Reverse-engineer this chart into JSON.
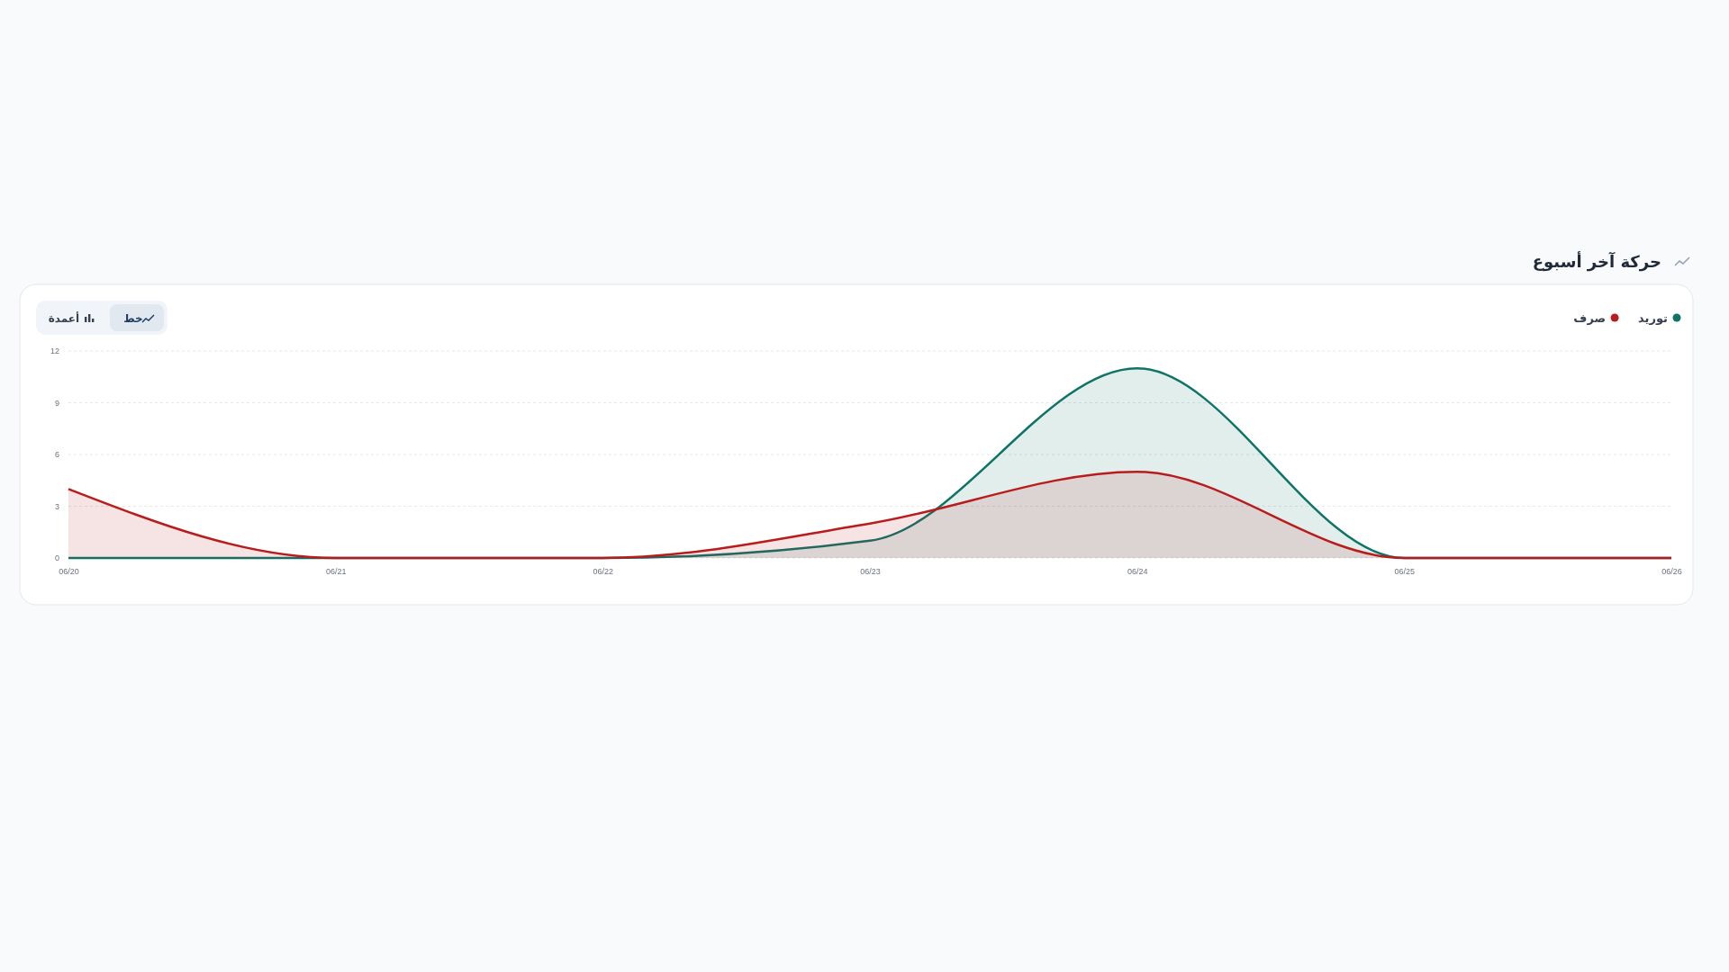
{
  "chart_data": {
    "type": "area",
    "title": "حركة آخر أسبوع",
    "annotations": [
      "خط",
      "أعمدة"
    ],
    "categories": [
      "06/20",
      "06/21",
      "06/22",
      "06/23",
      "06/24",
      "06/25",
      "06/26"
    ],
    "series": [
      {
        "name": "توريد",
        "color": "#0f7466",
        "values": [
          0,
          0,
          0,
          1,
          11,
          0,
          0
        ]
      },
      {
        "name": "صرف",
        "color": "#b91c1c",
        "values": [
          4,
          0,
          0,
          2,
          5,
          0,
          0
        ]
      }
    ],
    "ylim": [
      0,
      12
    ],
    "yticks": [
      0,
      3,
      6,
      9,
      12
    ],
    "grid": "y",
    "legend": "top right",
    "marker": "none"
  }
}
